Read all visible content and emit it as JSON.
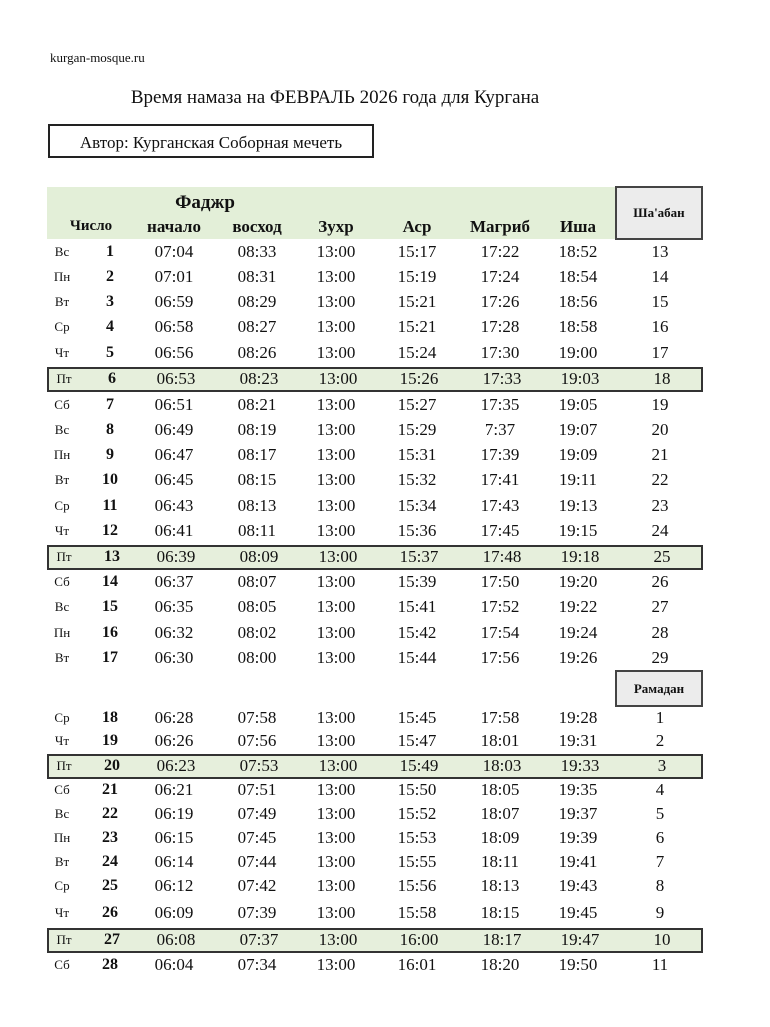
{
  "site": "kurgan-mosque.ru",
  "title": "Время намаза на ФЕВРАЛЬ 2026 года для Кургана",
  "author": "Автор: Курганская Соборная мечеть",
  "header": {
    "fajr": "Фаджр",
    "number": "Число",
    "fajr_start": "начало",
    "sunrise": "восход",
    "zuhr": "Зухр",
    "asr": "Аср",
    "maghrib": "Магриб",
    "isha": "Иша",
    "hijri_month_1": "Ша'абан",
    "hijri_month_2": "Рамадан"
  },
  "highlight_color": "#e6efdc",
  "rows": [
    [
      "Вс",
      "1",
      "07:04",
      "08:33",
      "13:00",
      "15:17",
      "17:22",
      "18:52",
      "13"
    ],
    [
      "Пн",
      "2",
      "07:01",
      "08:31",
      "13:00",
      "15:19",
      "17:24",
      "18:54",
      "14"
    ],
    [
      "Вт",
      "3",
      "06:59",
      "08:29",
      "13:00",
      "15:21",
      "17:26",
      "18:56",
      "15"
    ],
    [
      "Ср",
      "4",
      "06:58",
      "08:27",
      "13:00",
      "15:21",
      "17:28",
      "18:58",
      "16"
    ],
    [
      "Чт",
      "5",
      "06:56",
      "08:26",
      "13:00",
      "15:24",
      "17:30",
      "19:00",
      "17"
    ],
    [
      "Пт",
      "6",
      "06:53",
      "08:23",
      "13:00",
      "15:26",
      "17:33",
      "19:03",
      "18"
    ],
    [
      "Сб",
      "7",
      "06:51",
      "08:21",
      "13:00",
      "15:27",
      "17:35",
      "19:05",
      "19"
    ],
    [
      "Вс",
      "8",
      "06:49",
      "08:19",
      "13:00",
      "15:29",
      "7:37",
      "19:07",
      "20"
    ],
    [
      "Пн",
      "9",
      "06:47",
      "08:17",
      "13:00",
      "15:31",
      "17:39",
      "19:09",
      "21"
    ],
    [
      "Вт",
      "10",
      "06:45",
      "08:15",
      "13:00",
      "15:32",
      "17:41",
      "19:11",
      "22"
    ],
    [
      "Ср",
      "11",
      "06:43",
      "08:13",
      "13:00",
      "15:34",
      "17:43",
      "19:13",
      "23"
    ],
    [
      "Чт",
      "12",
      "06:41",
      "08:11",
      "13:00",
      "15:36",
      "17:45",
      "19:15",
      "24"
    ],
    [
      "Пт",
      "13",
      "06:39",
      "08:09",
      "13:00",
      "15:37",
      "17:48",
      "19:18",
      "25"
    ],
    [
      "Сб",
      "14",
      "06:37",
      "08:07",
      "13:00",
      "15:39",
      "17:50",
      "19:20",
      "26"
    ],
    [
      "Вс",
      "15",
      "06:35",
      "08:05",
      "13:00",
      "15:41",
      "17:52",
      "19:22",
      "27"
    ],
    [
      "Пн",
      "16",
      "06:32",
      "08:02",
      "13:00",
      "15:42",
      "17:54",
      "19:24",
      "28"
    ],
    [
      "Вт",
      "17",
      "06:30",
      "08:00",
      "13:00",
      "15:44",
      "17:56",
      "19:26",
      "29"
    ],
    [
      "Ср",
      "18",
      "06:28",
      "07:58",
      "13:00",
      "15:45",
      "17:58",
      "19:28",
      "1"
    ],
    [
      "Чт",
      "19",
      "06:26",
      "07:56",
      "13:00",
      "15:47",
      "18:01",
      "19:31",
      "2"
    ],
    [
      "Пт",
      "20",
      "06:23",
      "07:53",
      "13:00",
      "15:49",
      "18:03",
      "19:33",
      "3"
    ],
    [
      "Сб",
      "21",
      "06:21",
      "07:51",
      "13:00",
      "15:50",
      "18:05",
      "19:35",
      "4"
    ],
    [
      "Вс",
      "22",
      "06:19",
      "07:49",
      "13:00",
      "15:52",
      "18:07",
      "19:37",
      "5"
    ],
    [
      "Пн",
      "23",
      "06:15",
      "07:45",
      "13:00",
      "15:53",
      "18:09",
      "19:39",
      "6"
    ],
    [
      "Вт",
      "24",
      "06:14",
      "07:44",
      "13:00",
      "15:55",
      "18:11",
      "19:41",
      "7"
    ],
    [
      "Ср",
      "25",
      "06:12",
      "07:42",
      "13:00",
      "15:56",
      "18:13",
      "19:43",
      "8"
    ],
    [
      "Чт",
      "26",
      "06:09",
      "07:39",
      "13:00",
      "15:58",
      "18:15",
      "19:45",
      "9"
    ],
    [
      "Пт",
      "27",
      "06:08",
      "07:37",
      "13:00",
      "16:00",
      "18:17",
      "19:47",
      "10"
    ],
    [
      "Сб",
      "28",
      "06:04",
      "07:34",
      "13:00",
      "16:01",
      "18:20",
      "19:50",
      "11"
    ]
  ]
}
